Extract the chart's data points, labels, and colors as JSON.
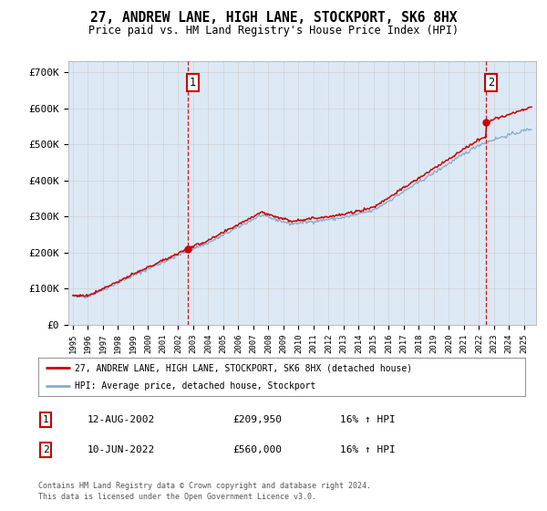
{
  "title": "27, ANDREW LANE, HIGH LANE, STOCKPORT, SK6 8HX",
  "subtitle": "Price paid vs. HM Land Registry's House Price Index (HPI)",
  "background_color": "#dce9f5",
  "plot_bg_color": "#dce9f5",
  "legend_label_red": "27, ANDREW LANE, HIGH LANE, STOCKPORT, SK6 8HX (detached house)",
  "legend_label_blue": "HPI: Average price, detached house, Stockport",
  "annotation1_date": "12-AUG-2002",
  "annotation1_price": "£209,950",
  "annotation1_hpi": "16% ↑ HPI",
  "annotation2_date": "10-JUN-2022",
  "annotation2_price": "£560,000",
  "annotation2_hpi": "16% ↑ HPI",
  "footer": "Contains HM Land Registry data © Crown copyright and database right 2024.\nThis data is licensed under the Open Government Licence v3.0.",
  "ylim": [
    0,
    730000
  ],
  "yticks": [
    0,
    100000,
    200000,
    300000,
    400000,
    500000,
    600000,
    700000
  ],
  "ytick_labels": [
    "£0",
    "£100K",
    "£200K",
    "£300K",
    "£400K",
    "£500K",
    "£600K",
    "£700K"
  ],
  "sale1_year": 2002.617,
  "sale1_price": 209950,
  "sale2_year": 2022.44,
  "sale2_price": 560000,
  "red_color": "#cc0000",
  "blue_color": "#88aacc",
  "vline_color": "#cc0000",
  "grid_color": "#cccccc",
  "xlim_left": 1994.7,
  "xlim_right": 2025.8
}
